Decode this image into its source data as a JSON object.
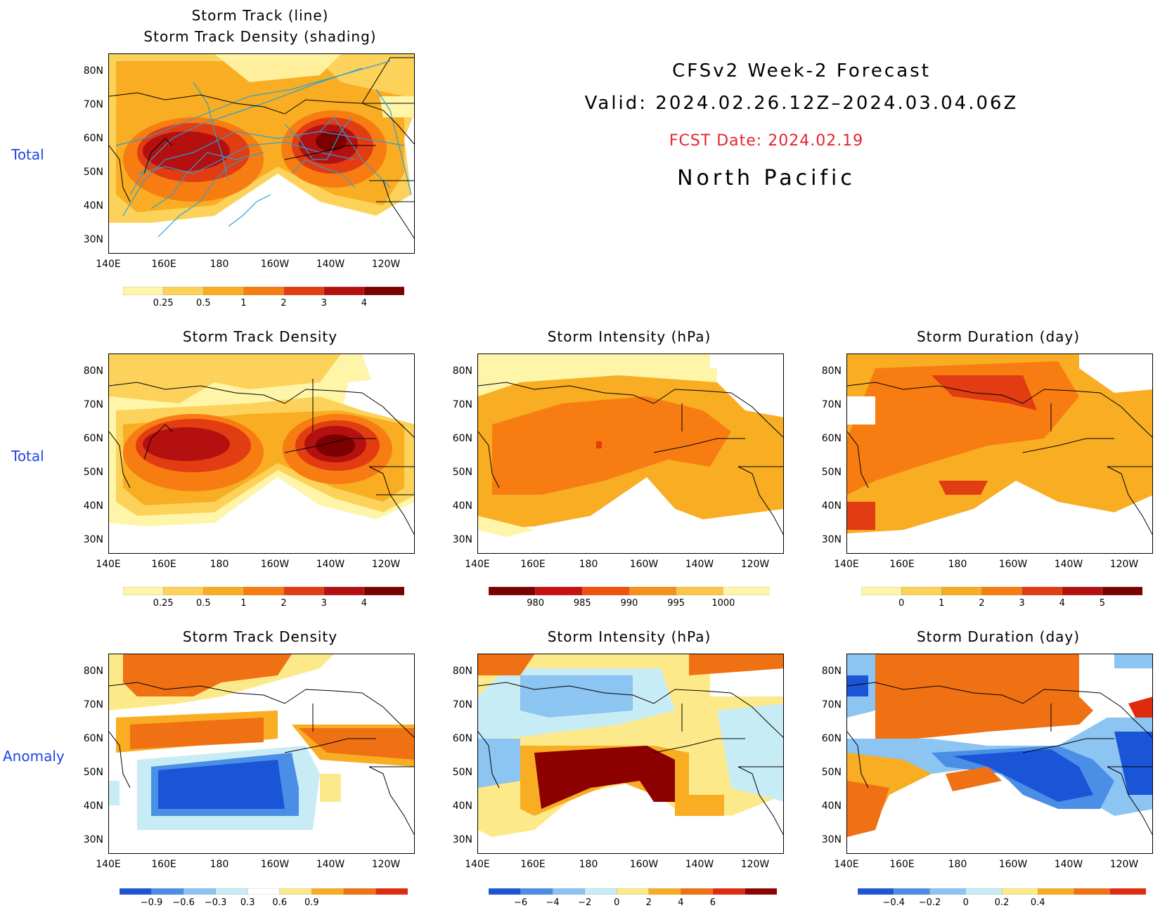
{
  "header": {
    "title": "CFSv2 Week-2 Forecast",
    "valid": "Valid: 2024.02.26.12Z–2024.03.04.06Z",
    "fcst_date": "FCST Date: 2024.02.19",
    "region": "North Pacific"
  },
  "row_labels": {
    "total_top": "Total",
    "total_mid": "Total",
    "anomaly": "Anomaly"
  },
  "axes": {
    "lat_labels": [
      "80N",
      "70N",
      "60N",
      "50N",
      "40N",
      "30N"
    ],
    "lon_labels": [
      "140E",
      "160E",
      "180",
      "160W",
      "140W",
      "120W"
    ]
  },
  "panels": {
    "track": {
      "title_line1": "Storm Track (line)",
      "title_line2": "Storm Track Density (shading)"
    },
    "density_total": {
      "title": "Storm Track Density"
    },
    "intensity_total": {
      "title": "Storm Intensity (hPa)"
    },
    "duration_total": {
      "title": "Storm Duration (day)"
    },
    "density_anom": {
      "title": "Storm Track Density"
    },
    "intensity_anom": {
      "title": "Storm Intensity (hPa)"
    },
    "duration_anom": {
      "title": "Storm Duration (day)"
    }
  },
  "colorbars": {
    "density": {
      "labels": [
        "0.25",
        "0.5",
        "1",
        "2",
        "3",
        "4"
      ],
      "colors": [
        "#fff5a8",
        "#fcd25a",
        "#f8ad23",
        "#f77d12",
        "#e23c12",
        "#b41010",
        "#7b0000"
      ]
    },
    "intensity": {
      "labels": [
        "980",
        "985",
        "990",
        "995",
        "1000"
      ],
      "colors": [
        "#7b0000",
        "#c81010",
        "#f0520c",
        "#f7901a",
        "#fcc748",
        "#fff5a8"
      ]
    },
    "duration": {
      "labels": [
        "0",
        "1",
        "2",
        "3",
        "4",
        "5"
      ],
      "colors": [
        "#fff5a8",
        "#fcd25a",
        "#f8ad23",
        "#f77d12",
        "#e23c12",
        "#b41010",
        "#7b0000"
      ]
    },
    "density_anom": {
      "labels": [
        "−0.9",
        "−0.6",
        "−0.3",
        "0.3",
        "0.6",
        "0.9"
      ],
      "colors": [
        "#1a55d8",
        "#4a8ee6",
        "#8cc4f2",
        "#c8ecf6",
        "#ffffff",
        "#fcea8a",
        "#f8ad23",
        "#f07014",
        "#e02a0e"
      ]
    },
    "intensity_anom": {
      "labels": [
        "−6",
        "−4",
        "−2",
        "0",
        "2",
        "4",
        "6"
      ],
      "colors": [
        "#1a55d8",
        "#4a8ee6",
        "#8cc4f2",
        "#c8ecf6",
        "#fcea8a",
        "#f8ad23",
        "#f07014",
        "#e02a0e",
        "#8c0000"
      ]
    },
    "duration_anom": {
      "labels": [
        "−0.4",
        "−0.2",
        "0",
        "0.2",
        "0.4"
      ],
      "colors": [
        "#1a55d8",
        "#4a8ee6",
        "#8cc4f2",
        "#c8ecf6",
        "#fcea8a",
        "#f8ad23",
        "#f07014",
        "#e02a0e"
      ]
    }
  }
}
